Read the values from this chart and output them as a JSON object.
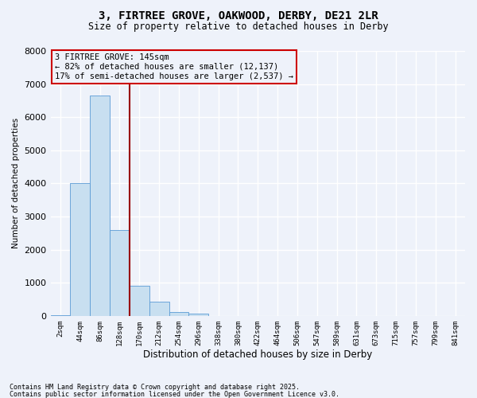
{
  "title": "3, FIRTREE GROVE, OAKWOOD, DERBY, DE21 2LR",
  "subtitle": "Size of property relative to detached houses in Derby",
  "xlabel": "Distribution of detached houses by size in Derby",
  "ylabel": "Number of detached properties",
  "bar_color": "#c8dff0",
  "bar_edge_color": "#5b9bd5",
  "background_color": "#eef2fa",
  "grid_color": "#ffffff",
  "vline_color": "#990000",
  "vline_x": 3.5,
  "annotation_text": "3 FIRTREE GROVE: 145sqm\n← 82% of detached houses are smaller (12,137)\n17% of semi-detached houses are larger (2,537) →",
  "annotation_box_color": "#cc0000",
  "categories": [
    "2sqm",
    "44sqm",
    "86sqm",
    "128sqm",
    "170sqm",
    "212sqm",
    "254sqm",
    "296sqm",
    "338sqm",
    "380sqm",
    "422sqm",
    "464sqm",
    "506sqm",
    "547sqm",
    "589sqm",
    "631sqm",
    "673sqm",
    "715sqm",
    "757sqm",
    "799sqm",
    "841sqm"
  ],
  "values": [
    30,
    4000,
    6650,
    2600,
    920,
    420,
    120,
    80,
    0,
    0,
    0,
    0,
    0,
    0,
    0,
    0,
    0,
    0,
    0,
    0,
    0
  ],
  "ylim": [
    0,
    8000
  ],
  "yticks": [
    0,
    1000,
    2000,
    3000,
    4000,
    5000,
    6000,
    7000,
    8000
  ],
  "footnote1": "Contains HM Land Registry data © Crown copyright and database right 2025.",
  "footnote2": "Contains public sector information licensed under the Open Government Licence v3.0."
}
